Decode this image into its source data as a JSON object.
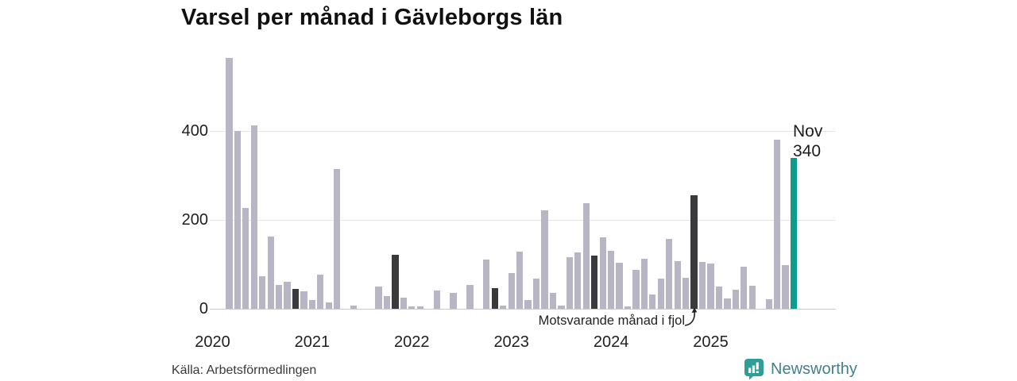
{
  "chart_data": {
    "type": "bar",
    "title": "Varsel per månad i Gävleborgs län",
    "xlabel": "",
    "ylabel": "",
    "y_axis": {
      "ticks": [
        0,
        200,
        400
      ],
      "ylim": [
        0,
        580
      ],
      "grid": true
    },
    "x_axis": {
      "tick_labels": [
        "2020",
        "2021",
        "2022",
        "2023",
        "2024",
        "2025"
      ]
    },
    "bars": [
      {
        "m": "2020-03",
        "v": 565
      },
      {
        "m": "2020-04",
        "v": 400
      },
      {
        "m": "2020-05",
        "v": 227
      },
      {
        "m": "2020-06",
        "v": 413
      },
      {
        "m": "2020-07",
        "v": 73
      },
      {
        "m": "2020-08",
        "v": 163
      },
      {
        "m": "2020-09",
        "v": 53
      },
      {
        "m": "2020-10",
        "v": 60
      },
      {
        "m": "2020-11",
        "v": 45,
        "k": "nov"
      },
      {
        "m": "2020-12",
        "v": 39
      },
      {
        "m": "2021-01",
        "v": 19
      },
      {
        "m": "2021-02",
        "v": 77
      },
      {
        "m": "2021-03",
        "v": 14
      },
      {
        "m": "2021-04",
        "v": 315
      },
      {
        "m": "2021-06",
        "v": 7
      },
      {
        "m": "2021-09",
        "v": 50
      },
      {
        "m": "2021-10",
        "v": 28
      },
      {
        "m": "2021-11",
        "v": 122,
        "k": "nov"
      },
      {
        "m": "2021-12",
        "v": 25
      },
      {
        "m": "2022-01",
        "v": 5
      },
      {
        "m": "2022-02",
        "v": 5
      },
      {
        "m": "2022-04",
        "v": 41
      },
      {
        "m": "2022-06",
        "v": 35
      },
      {
        "m": "2022-08",
        "v": 53
      },
      {
        "m": "2022-10",
        "v": 110
      },
      {
        "m": "2022-11",
        "v": 47,
        "k": "nov"
      },
      {
        "m": "2022-12",
        "v": 7
      },
      {
        "m": "2023-01",
        "v": 80
      },
      {
        "m": "2023-02",
        "v": 128
      },
      {
        "m": "2023-03",
        "v": 19
      },
      {
        "m": "2023-04",
        "v": 67
      },
      {
        "m": "2023-05",
        "v": 222
      },
      {
        "m": "2023-06",
        "v": 35
      },
      {
        "m": "2023-07",
        "v": 8
      },
      {
        "m": "2023-08",
        "v": 116
      },
      {
        "m": "2023-09",
        "v": 127
      },
      {
        "m": "2023-10",
        "v": 237
      },
      {
        "m": "2023-11",
        "v": 119,
        "k": "nov"
      },
      {
        "m": "2023-12",
        "v": 161
      },
      {
        "m": "2024-01",
        "v": 131
      },
      {
        "m": "2024-02",
        "v": 104
      },
      {
        "m": "2024-03",
        "v": 5
      },
      {
        "m": "2024-04",
        "v": 88
      },
      {
        "m": "2024-05",
        "v": 112
      },
      {
        "m": "2024-06",
        "v": 32
      },
      {
        "m": "2024-07",
        "v": 67
      },
      {
        "m": "2024-08",
        "v": 157
      },
      {
        "m": "2024-09",
        "v": 108
      },
      {
        "m": "2024-10",
        "v": 70
      },
      {
        "m": "2024-11",
        "v": 255,
        "k": "nov"
      },
      {
        "m": "2024-12",
        "v": 106
      },
      {
        "m": "2025-01",
        "v": 102
      },
      {
        "m": "2025-02",
        "v": 50
      },
      {
        "m": "2025-03",
        "v": 23
      },
      {
        "m": "2025-04",
        "v": 42
      },
      {
        "m": "2025-05",
        "v": 95
      },
      {
        "m": "2025-06",
        "v": 52
      },
      {
        "m": "2025-08",
        "v": 21
      },
      {
        "m": "2025-09",
        "v": 380
      },
      {
        "m": "2025-10",
        "v": 98
      },
      {
        "m": "2025-11",
        "v": 340,
        "k": "latest"
      }
    ],
    "legend_position": "none",
    "annotation": {
      "text": "Motsvarande månad i fjol",
      "points_to": "2024-11"
    },
    "latest_point_label": {
      "line1": "Nov",
      "line2": "340"
    }
  },
  "colors": {
    "bar_default": "#b8b6c4",
    "bar_last_year_month": "#3a3a3c",
    "bar_latest": "#0e9c8d",
    "grid": "#e4e4e4",
    "axis_line": "#c9c9c9",
    "brand_icon": "#2f9e99",
    "brand_text": "#447f8f"
  },
  "source_text": "Källa: Arbetsförmedlingen",
  "brand": {
    "name": "Newsworthy"
  }
}
